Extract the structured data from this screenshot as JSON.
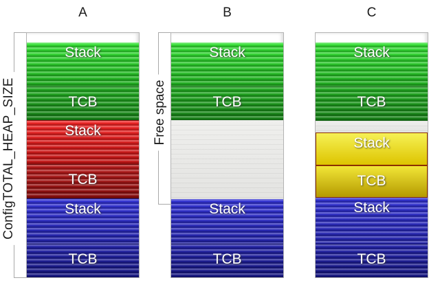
{
  "annotations": {
    "heap_size_label": "ConfigTOTAL_HEAP_SIZE",
    "free_space_label": "Free space"
  },
  "columns": [
    {
      "label": "A",
      "segments": [
        {
          "kind": "stack",
          "color": "green",
          "label": "Stack"
        },
        {
          "kind": "tcb",
          "color": "green",
          "label": "TCB"
        },
        {
          "kind": "stack",
          "color": "red",
          "label": "Stack"
        },
        {
          "kind": "tcb",
          "color": "red",
          "label": "TCB"
        },
        {
          "kind": "stack",
          "color": "blue",
          "label": "Stack"
        },
        {
          "kind": "tcb",
          "color": "blue",
          "label": "TCB"
        }
      ]
    },
    {
      "label": "B",
      "segments": [
        {
          "kind": "stack",
          "color": "green",
          "label": "Stack"
        },
        {
          "kind": "tcb",
          "color": "green",
          "label": "TCB"
        },
        {
          "kind": "free",
          "color": "gray",
          "label": ""
        },
        {
          "kind": "stack",
          "color": "blue",
          "label": "Stack"
        },
        {
          "kind": "tcb",
          "color": "blue",
          "label": "TCB"
        }
      ]
    },
    {
      "label": "C",
      "segments": [
        {
          "kind": "stack",
          "color": "green",
          "label": "Stack"
        },
        {
          "kind": "tcb",
          "color": "green",
          "label": "TCB"
        },
        {
          "kind": "free",
          "color": "gray",
          "label": ""
        },
        {
          "kind": "stack",
          "color": "yellow",
          "label": "Stack"
        },
        {
          "kind": "tcb",
          "color": "yellow",
          "label": "TCB"
        },
        {
          "kind": "stack",
          "color": "blue",
          "label": "Stack"
        },
        {
          "kind": "tcb",
          "color": "blue",
          "label": "TCB"
        }
      ]
    }
  ],
  "colors": {
    "green_stack": {
      "from": "#35e035",
      "to": "#1ea81e"
    },
    "green_tcb": {
      "from": "#21ab21",
      "to": "#157c15"
    },
    "red_stack": {
      "from": "#ee2525",
      "to": "#bd1414"
    },
    "red_tcb": {
      "from": "#b61b1b",
      "to": "#840d0d"
    },
    "blue_stack": {
      "from": "#3232d2",
      "to": "#2323a6"
    },
    "blue_tcb": {
      "from": "#2424a8",
      "to": "#15157c"
    },
    "yellow_stack": {
      "from": "#f6f155",
      "to": "#ddc400"
    },
    "yellow_tcb": {
      "from": "#f2e637",
      "to": "#b49a00"
    },
    "yellow_border": "#8b2e00",
    "free_space": {
      "from": "#efefed",
      "to": "#e3e3e1"
    },
    "bracket_line": "#a8a8a8"
  }
}
